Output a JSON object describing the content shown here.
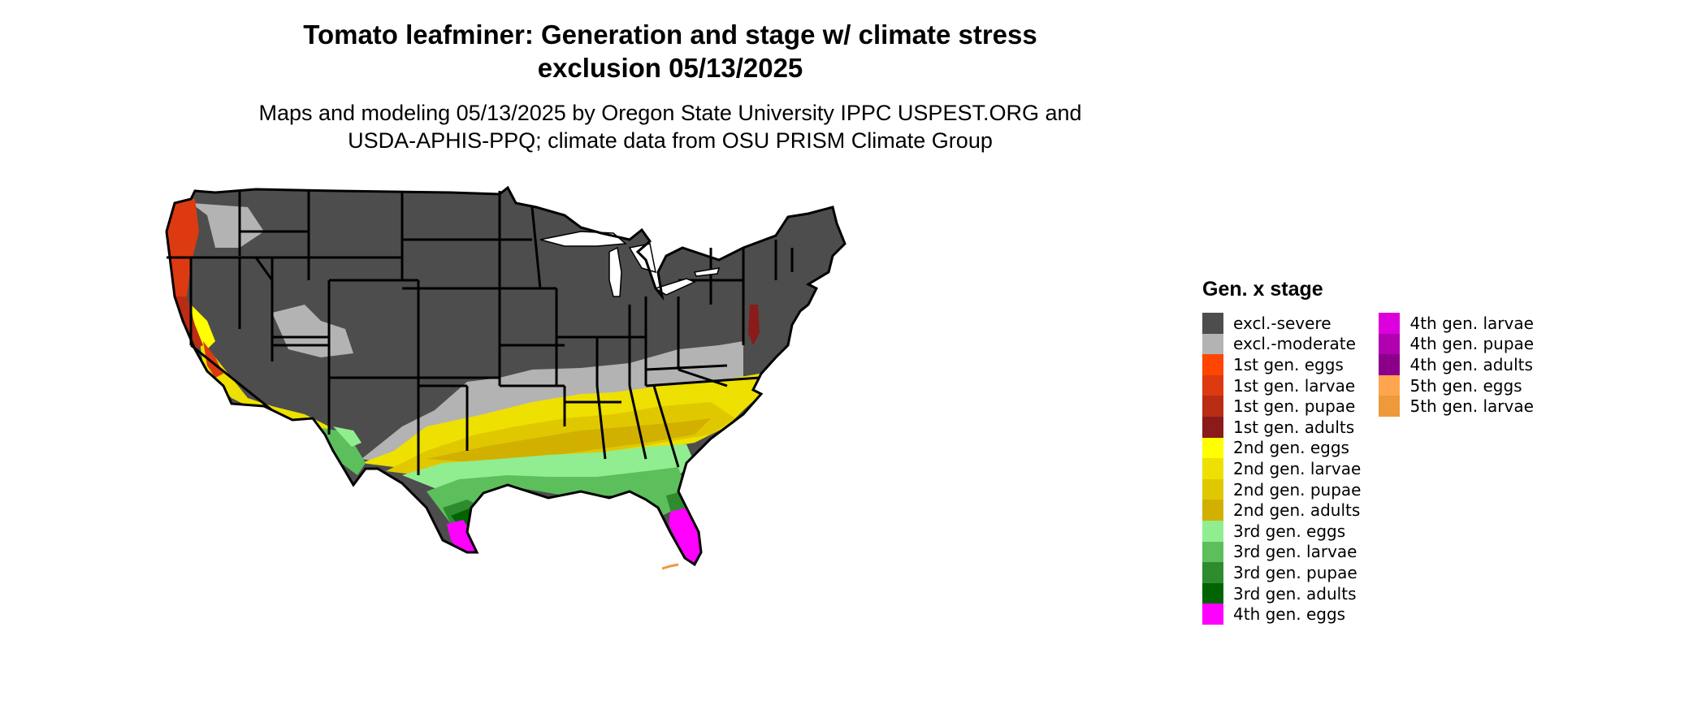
{
  "title_line1": "Tomato leafminer: Generation and stage w/ climate stress",
  "title_line2": "exclusion 05/13/2025",
  "subtitle_line1": "Maps and modeling 05/13/2025 by Oregon State University IPPC USPEST.ORG and",
  "subtitle_line2": "USDA-APHIS-PPQ; climate data from OSU PRISM Climate Group",
  "legend": {
    "title": "Gen. x stage",
    "items": [
      {
        "label": "excl.-severe",
        "color": "#4d4d4d"
      },
      {
        "label": "excl.-moderate",
        "color": "#b3b3b3"
      },
      {
        "label": "1st gen. eggs",
        "color": "#ff4500"
      },
      {
        "label": "1st gen. larvae",
        "color": "#dd3a12"
      },
      {
        "label": "1st gen. pupae",
        "color": "#b82d14"
      },
      {
        "label": "1st gen. adults",
        "color": "#8b1a1a"
      },
      {
        "label": "2nd gen. eggs",
        "color": "#ffff00"
      },
      {
        "label": "2nd gen. larvae",
        "color": "#eee000"
      },
      {
        "label": "2nd gen. pupae",
        "color": "#e0c800"
      },
      {
        "label": "2nd gen. adults",
        "color": "#d1b000"
      },
      {
        "label": "3rd gen. eggs",
        "color": "#90ee90"
      },
      {
        "label": "3rd gen. larvae",
        "color": "#5cbf5c"
      },
      {
        "label": "3rd gen. pupae",
        "color": "#2e8b2e"
      },
      {
        "label": "3rd gen. adults",
        "color": "#006400"
      },
      {
        "label": "4th gen. eggs",
        "color": "#ff00ff"
      },
      {
        "label": "4th gen. larvae",
        "color": "#dd00dd"
      },
      {
        "label": "4th gen. pupae",
        "color": "#b000b0"
      },
      {
        "label": "4th gen. adults",
        "color": "#8b008b"
      },
      {
        "label": "5th gen. eggs",
        "color": "#ffa54f"
      },
      {
        "label": "5th gen. larvae",
        "color": "#ee9a3a"
      }
    ]
  }
}
